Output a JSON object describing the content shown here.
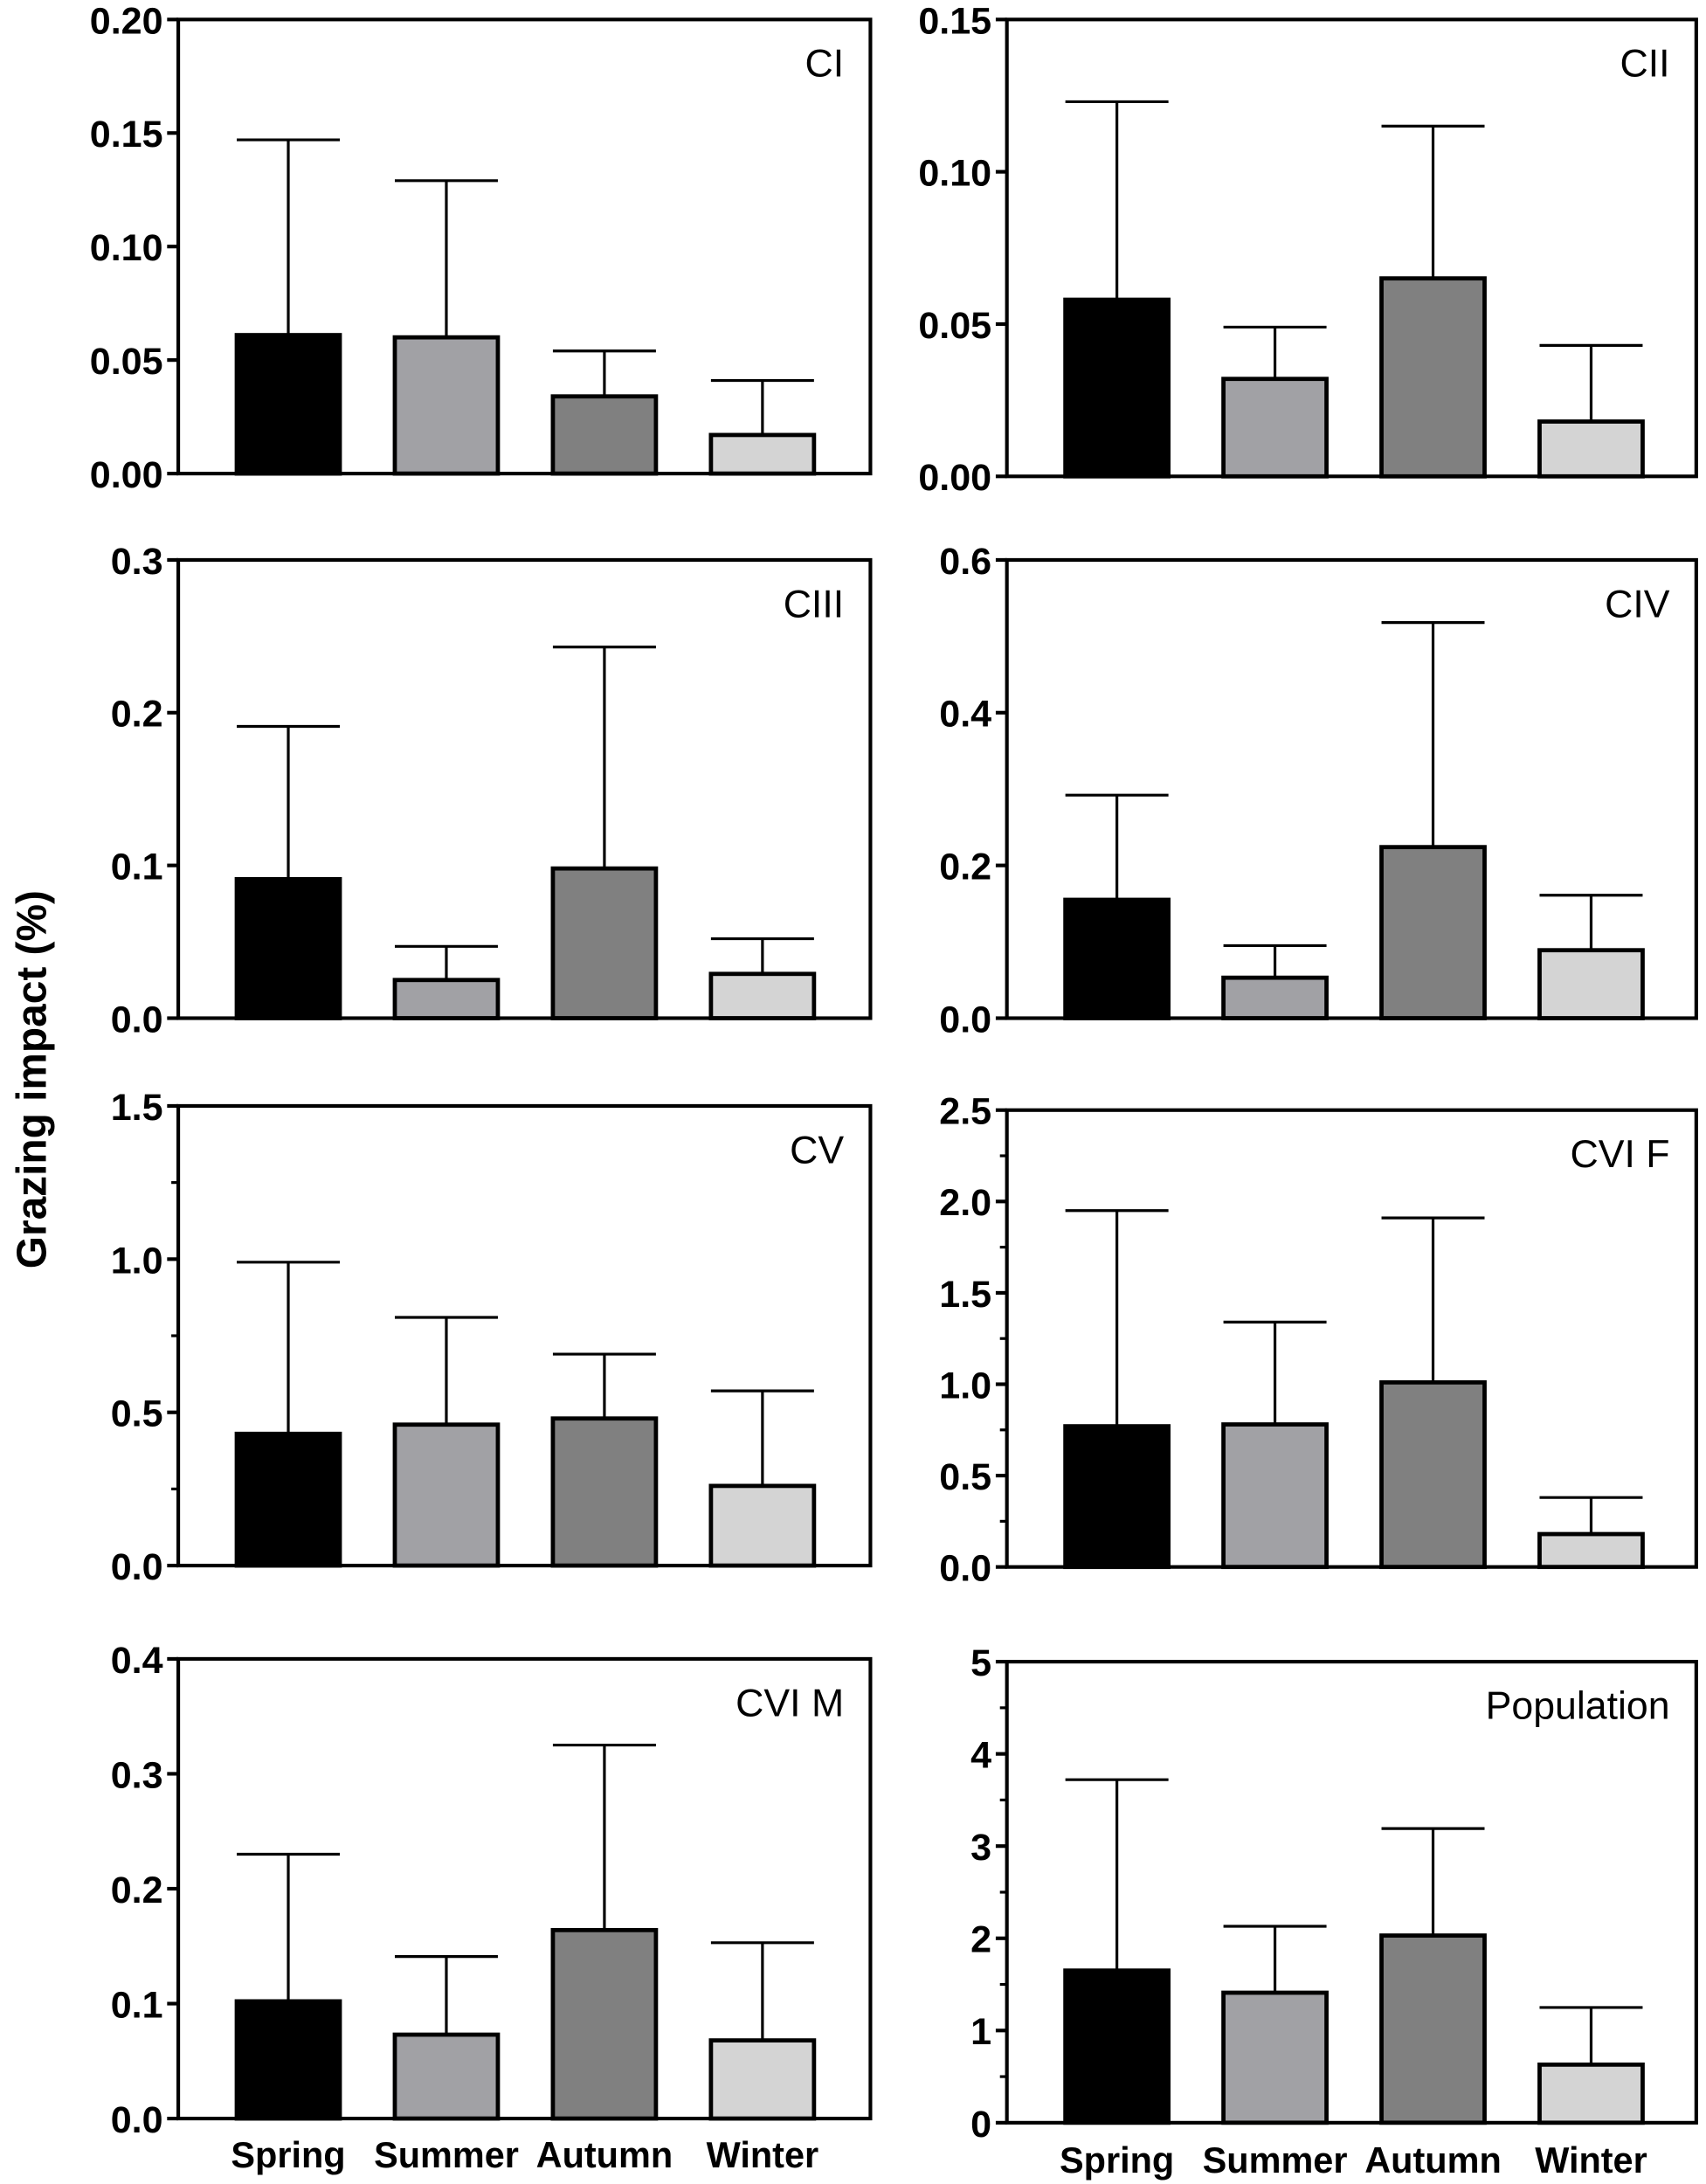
{
  "y_axis_label": "Grazing impact (%)",
  "colors": {
    "Spring": "#000000",
    "Summer": "#a1a1a5",
    "Autumn": "#808080",
    "Winter": "#d4d4d4"
  },
  "chart_data": [
    {
      "type": "bar",
      "title": "CI",
      "categories": [
        "Spring",
        "Summer",
        "Autumn",
        "Winter"
      ],
      "values": [
        0.061,
        0.06,
        0.034,
        0.017
      ],
      "errors": [
        0.086,
        0.069,
        0.02,
        0.024
      ],
      "ylim": [
        0,
        0.2
      ],
      "yticks": [
        0,
        0.05,
        0.1,
        0.15,
        0.2
      ],
      "ytick_labels": [
        "0.00",
        "0.05",
        "0.10",
        "0.15",
        "0.20"
      ],
      "minor_ticks": []
    },
    {
      "type": "bar",
      "title": "CII",
      "categories": [
        "Spring",
        "Summer",
        "Autumn",
        "Winter"
      ],
      "values": [
        0.058,
        0.032,
        0.065,
        0.018
      ],
      "errors": [
        0.065,
        0.017,
        0.05,
        0.025
      ],
      "ylim": [
        0,
        0.15
      ],
      "yticks": [
        0,
        0.05,
        0.1,
        0.15
      ],
      "ytick_labels": [
        "0.00",
        "0.05",
        "0.10",
        "0.15"
      ],
      "minor_ticks": []
    },
    {
      "type": "bar",
      "title": "CIII",
      "categories": [
        "Spring",
        "Summer",
        "Autumn",
        "Winter"
      ],
      "values": [
        0.091,
        0.025,
        0.098,
        0.029
      ],
      "errors": [
        0.1,
        0.022,
        0.145,
        0.023
      ],
      "ylim": [
        0,
        0.3
      ],
      "yticks": [
        0,
        0.1,
        0.2,
        0.3
      ],
      "ytick_labels": [
        "0.0",
        "0.1",
        "0.2",
        "0.3"
      ],
      "minor_ticks": []
    },
    {
      "type": "bar",
      "title": "CIV",
      "categories": [
        "Spring",
        "Summer",
        "Autumn",
        "Winter"
      ],
      "values": [
        0.155,
        0.053,
        0.224,
        0.089
      ],
      "errors": [
        0.137,
        0.042,
        0.294,
        0.072
      ],
      "ylim": [
        0,
        0.6
      ],
      "yticks": [
        0,
        0.2,
        0.4,
        0.6
      ],
      "ytick_labels": [
        "0.0",
        "0.2",
        "0.4",
        "0.6"
      ],
      "minor_ticks": []
    },
    {
      "type": "bar",
      "title": "CV",
      "categories": [
        "Spring",
        "Summer",
        "Autumn",
        "Winter"
      ],
      "values": [
        0.43,
        0.46,
        0.48,
        0.26
      ],
      "errors": [
        0.56,
        0.35,
        0.21,
        0.31
      ],
      "ylim": [
        0,
        1.5
      ],
      "yticks": [
        0,
        0.5,
        1.0,
        1.5
      ],
      "ytick_labels": [
        "0.0",
        "0.5",
        "1.0",
        "1.5"
      ],
      "minor_ticks": [
        0.25,
        0.75,
        1.25
      ]
    },
    {
      "type": "bar",
      "title": "CVI F",
      "categories": [
        "Spring",
        "Summer",
        "Autumn",
        "Winter"
      ],
      "values": [
        0.77,
        0.78,
        1.01,
        0.18
      ],
      "errors": [
        1.18,
        0.56,
        0.9,
        0.2
      ],
      "ylim": [
        0,
        2.5
      ],
      "yticks": [
        0,
        0.5,
        1.0,
        1.5,
        2.0,
        2.5
      ],
      "ytick_labels": [
        "0.0",
        "0.5",
        "1.0",
        "1.5",
        "2.0",
        "2.5"
      ],
      "minor_ticks": [
        0.25,
        0.75,
        1.25,
        1.75,
        2.25
      ]
    },
    {
      "type": "bar",
      "title": "CVI M",
      "categories": [
        "Spring",
        "Summer",
        "Autumn",
        "Winter"
      ],
      "values": [
        0.102,
        0.073,
        0.164,
        0.068
      ],
      "errors": [
        0.128,
        0.068,
        0.161,
        0.085
      ],
      "ylim": [
        0,
        0.4
      ],
      "yticks": [
        0,
        0.1,
        0.2,
        0.3,
        0.4
      ],
      "ytick_labels": [
        "0.0",
        "0.1",
        "0.2",
        "0.3",
        "0.4"
      ],
      "minor_ticks": []
    },
    {
      "type": "bar",
      "title": "Population",
      "categories": [
        "Spring",
        "Summer",
        "Autumn",
        "Winter"
      ],
      "values": [
        1.65,
        1.41,
        2.03,
        0.63
      ],
      "errors": [
        2.07,
        0.72,
        1.16,
        0.62
      ],
      "ylim": [
        0,
        5
      ],
      "yticks": [
        0,
        1,
        2,
        3,
        4,
        5
      ],
      "ytick_labels": [
        "0",
        "1",
        "2",
        "3",
        "4",
        "5"
      ],
      "minor_ticks": [
        0.5,
        1.5,
        2.5,
        3.5,
        4.5
      ]
    }
  ]
}
